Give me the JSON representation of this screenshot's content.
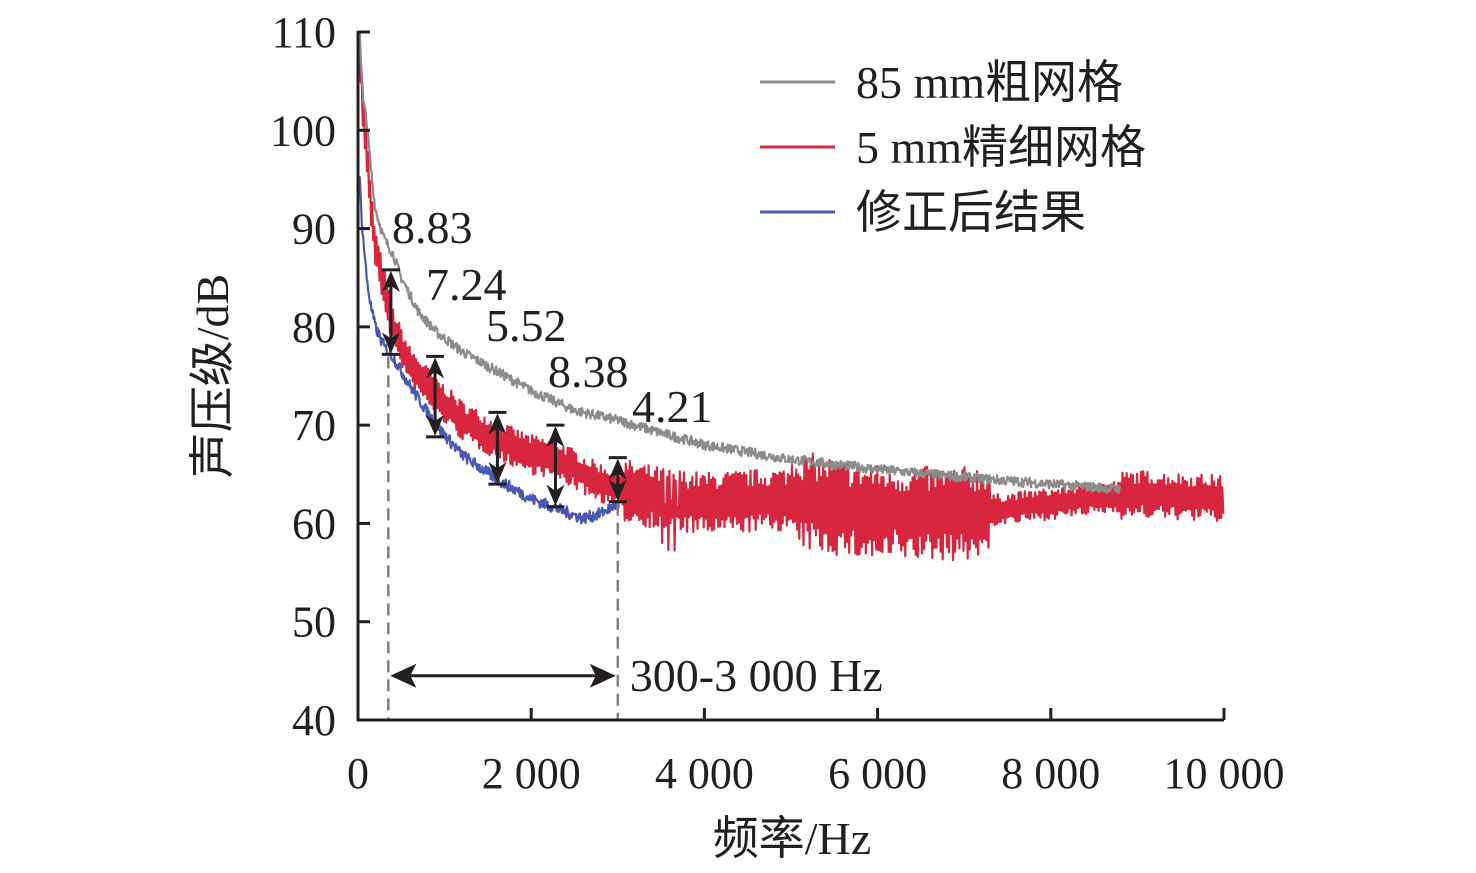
{
  "chart_data": {
    "type": "line",
    "title": "",
    "xlabel": "频率/Hz",
    "ylabel": "声压级/dB",
    "xlim": [
      0,
      10000
    ],
    "ylim": [
      40,
      110
    ],
    "grid": false,
    "xticks": [
      0,
      2000,
      4000,
      6000,
      8000,
      10000
    ],
    "xtick_labels": [
      "0",
      "2 000",
      "4 000",
      "6 000",
      "8 000",
      "10 000"
    ],
    "yticks": [
      40,
      50,
      60,
      70,
      80,
      90,
      100,
      110
    ],
    "ytick_labels": [
      "40",
      "50",
      "60",
      "70",
      "80",
      "90",
      "100",
      "110"
    ],
    "legend_position": "top-right",
    "series": [
      {
        "name": "85 mm粗网格",
        "color": "#8c8c8c",
        "x": [
          20,
          60,
          100,
          150,
          200,
          300,
          400,
          500,
          700,
          900,
          1200,
          1500,
          2000,
          2500,
          3000,
          3500,
          4000,
          5000,
          6000,
          7000,
          8000,
          8800
        ],
        "y": [
          110,
          103,
          101,
          96,
          92,
          89,
          87.5,
          85,
          81.5,
          79.5,
          77.5,
          76,
          73.5,
          71.5,
          70.5,
          69.2,
          68,
          66.5,
          65.5,
          64.7,
          64,
          63.5
        ]
      },
      {
        "name": "5 mm精细网格",
        "color": "#d7263d",
        "x": [
          20,
          50,
          100,
          150,
          200,
          300,
          400,
          600,
          900,
          1200,
          1600,
          2000,
          2300,
          2700,
          3000,
          3500,
          4000,
          5000,
          6000,
          7000,
          8000,
          9000,
          10000
        ],
        "y": [
          110,
          102,
          98,
          92,
          88,
          84,
          80,
          76,
          73,
          70.5,
          68.5,
          67,
          66.5,
          64.5,
          63.5,
          62.5,
          62,
          62.5,
          61,
          61,
          62,
          63,
          62.5
        ]
      },
      {
        "name": "修正后结果",
        "color": "#4a57b3",
        "x": [
          20,
          50,
          100,
          150,
          200,
          300,
          400,
          600,
          900,
          1200,
          1600,
          2000,
          2300,
          2600,
          2800,
          3000
        ],
        "y": [
          95,
          90,
          85,
          82,
          80,
          78,
          77,
          74,
          70,
          67,
          64.5,
          62.5,
          61.5,
          60.5,
          61,
          62
        ]
      }
    ],
    "annotations": {
      "differences": [
        {
          "label": "8.83",
          "x": 380,
          "y_top": 85.8,
          "y_bottom": 77.2
        },
        {
          "label": "7.24",
          "x": 890,
          "y_top": 77,
          "y_bottom": 68.8
        },
        {
          "label": "5.52",
          "x": 1610,
          "y_top": 71.3,
          "y_bottom": 64
        },
        {
          "label": "8.38",
          "x": 2280,
          "y_top": 70,
          "y_bottom": 61.7
        },
        {
          "label": "4.21",
          "x": 3000,
          "y_top": 66.7,
          "y_bottom": 62.2
        }
      ],
      "range": {
        "label": "300-3 000 Hz",
        "x_start": 350,
        "x_end": 3000,
        "y": 44.5
      }
    }
  }
}
